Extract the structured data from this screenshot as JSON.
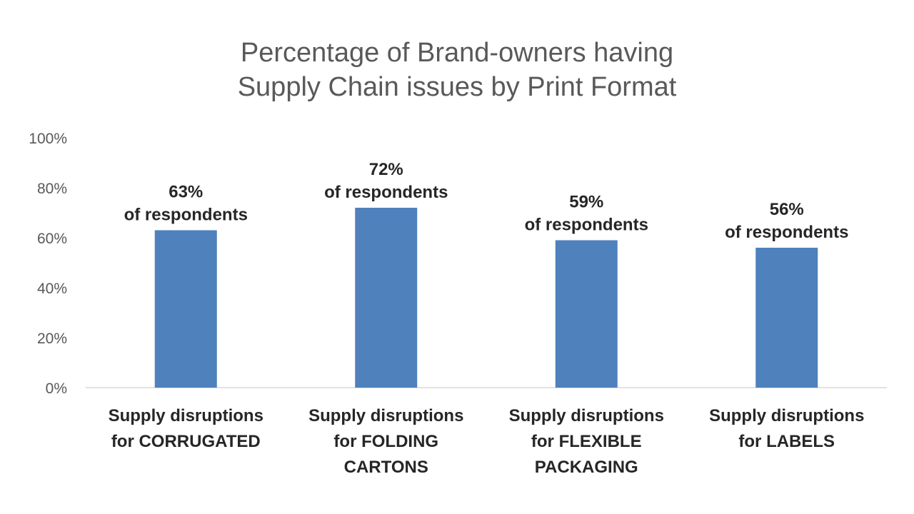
{
  "chart_data": {
    "type": "bar",
    "title_lines": [
      "Percentage of Brand-owners having",
      "Supply Chain issues by Print Format"
    ],
    "categories": [
      [
        "Supply disruptions",
        "for CORRUGATED"
      ],
      [
        "Supply disruptions",
        "for FOLDING",
        "CARTONS"
      ],
      [
        "Supply disruptions",
        "for FLEXIBLE",
        "PACKAGING"
      ],
      [
        "Supply disruptions",
        "for LABELS"
      ]
    ],
    "values": [
      63,
      72,
      59,
      56
    ],
    "data_labels": [
      [
        "63%",
        "of respondents"
      ],
      [
        "72%",
        "of respondents"
      ],
      [
        "59%",
        "of respondents"
      ],
      [
        "56%",
        "of respondents"
      ]
    ],
    "ylim": [
      0,
      100
    ],
    "yticks": [
      "0%",
      "20%",
      "40%",
      "60%",
      "80%",
      "100%"
    ],
    "ytick_values": [
      0,
      20,
      40,
      60,
      80,
      100
    ],
    "bar_color": "#4F81BD",
    "grid": false,
    "legend": "none"
  }
}
